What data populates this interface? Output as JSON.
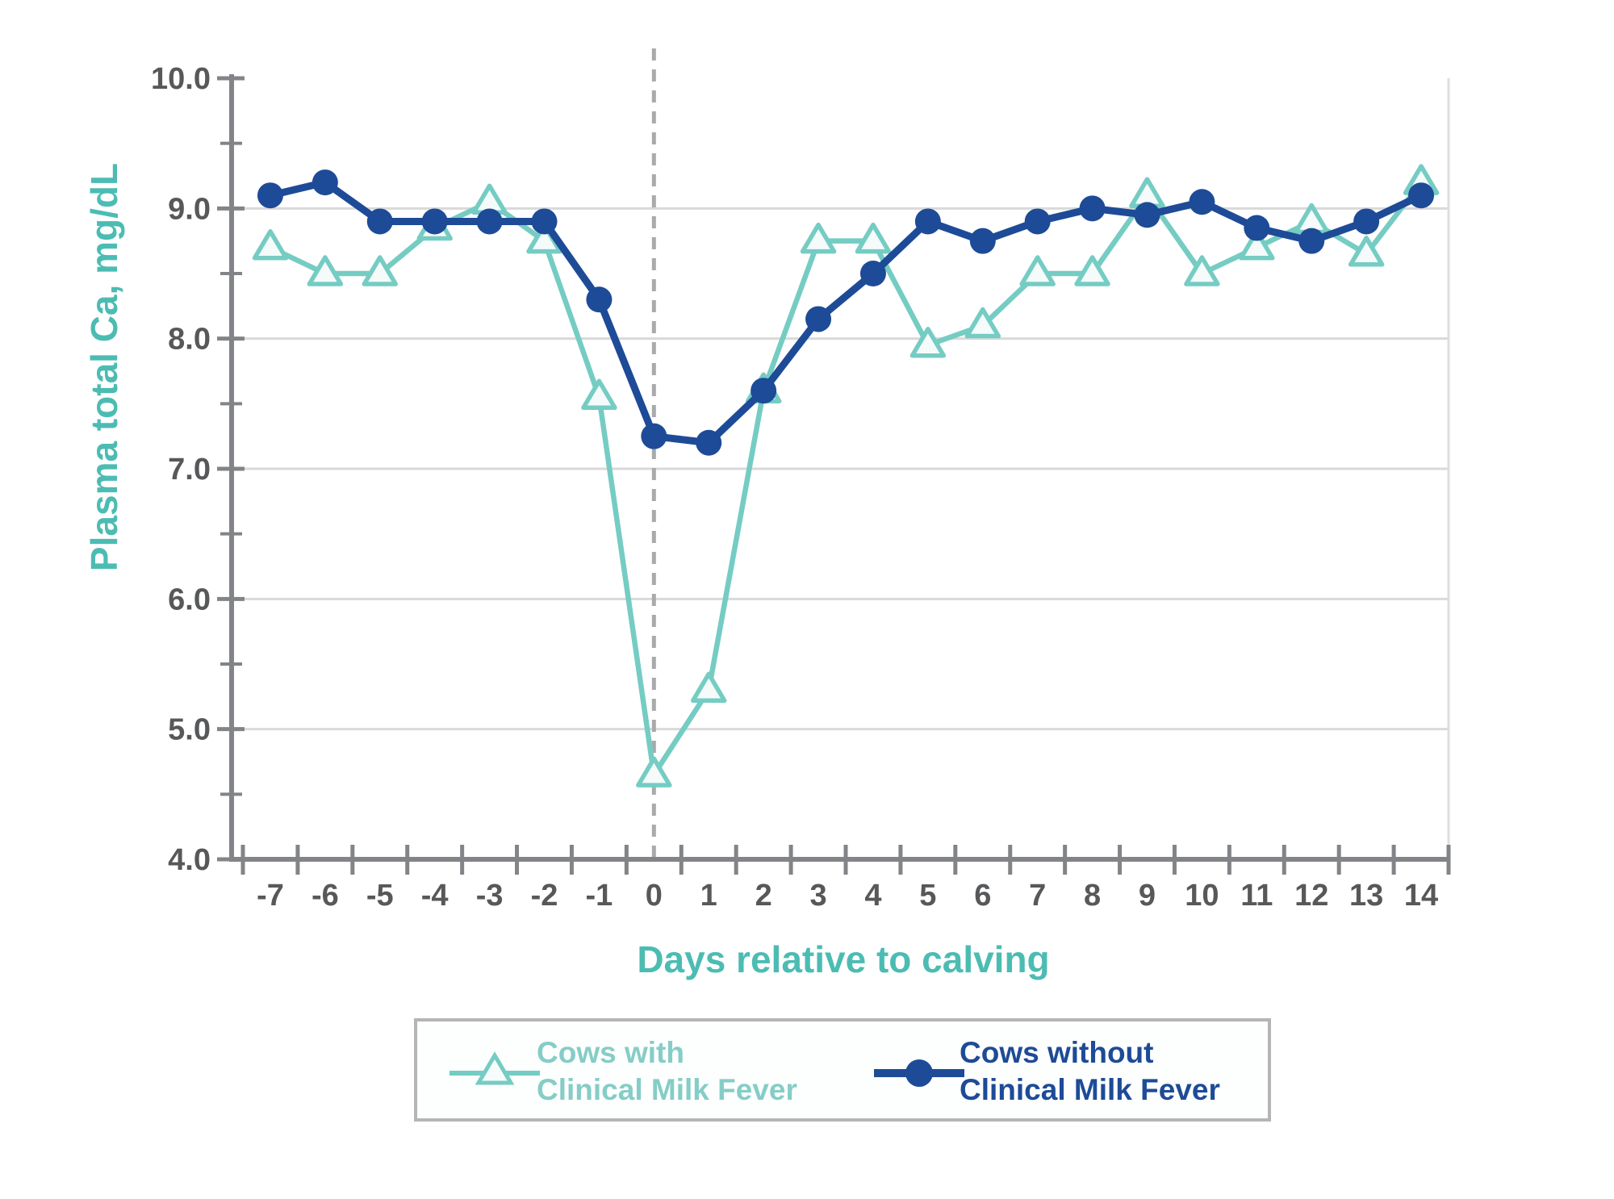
{
  "chart_data": {
    "type": "line",
    "title": "",
    "xlabel": "Days relative to calving",
    "ylabel": "Plasma total Ca, mg/dL",
    "ylim": [
      4.0,
      10.0
    ],
    "yticks": [
      {
        "v": 10.0,
        "label": "10.0"
      },
      {
        "v": 9.0,
        "label": "9.0"
      },
      {
        "v": 8.0,
        "label": "8.0"
      },
      {
        "v": 7.0,
        "label": "7.0"
      },
      {
        "v": 6.0,
        "label": "6.0"
      },
      {
        "v": 5.0,
        "label": "5.0"
      },
      {
        "v": 4.0,
        "label": "4.0"
      }
    ],
    "yticks_minor": [
      9.5,
      8.5,
      7.5,
      6.5,
      5.5,
      4.5
    ],
    "gridlines_at": [
      9.0,
      8.0,
      7.0,
      6.0,
      5.0
    ],
    "grid": "horizontal-only",
    "legend_position": "bottom",
    "categories": [
      "-7",
      "-6",
      "-5",
      "-4",
      "-3",
      "-2",
      "-1",
      "0",
      "1",
      "2",
      "3",
      "4",
      "5",
      "6",
      "7",
      "8",
      "9",
      "10",
      "11",
      "12",
      "13",
      "14"
    ],
    "vline_at_category": "0",
    "vline_style": "dashed",
    "series": [
      {
        "name": "Cows with Clinical Milk Fever",
        "marker": "open-triangle",
        "values": [
          8.7,
          8.5,
          8.5,
          8.85,
          9.05,
          8.75,
          7.55,
          4.65,
          5.3,
          7.6,
          8.75,
          8.75,
          7.95,
          8.1,
          8.5,
          8.5,
          9.1,
          8.5,
          8.7,
          8.9,
          8.65,
          9.2
        ]
      },
      {
        "name": "Cows without Clinical Milk Fever",
        "marker": "filled-circle",
        "values": [
          9.1,
          9.2,
          8.9,
          8.9,
          8.9,
          8.9,
          8.3,
          7.25,
          7.2,
          7.6,
          8.15,
          8.5,
          8.9,
          8.75,
          8.9,
          9.0,
          8.95,
          9.05,
          8.85,
          8.75,
          8.9,
          9.1
        ]
      }
    ]
  },
  "legend": {
    "items": [
      {
        "line1": "Cows with",
        "line2": "Clinical Milk Fever",
        "series": "Cows with Clinical Milk Fever"
      },
      {
        "line1": "Cows without",
        "line2": "Clinical Milk Fever",
        "series": "Cows without Clinical Milk Fever"
      }
    ]
  },
  "colors": {
    "teal_line": "#75ccc3",
    "teal_marker_fill": "#f4fbfa",
    "teal_title": "#4cbcb3",
    "teal_legend_text": "#85cdc6",
    "blue": "#1d4b97",
    "axis_gray": "#828487",
    "label_gray": "#57585a",
    "grid_gray": "#d9d9d9",
    "right_border_gray": "#dedede",
    "dashed_gray": "#a8aaac",
    "legend_border": "#b3b5b7"
  }
}
